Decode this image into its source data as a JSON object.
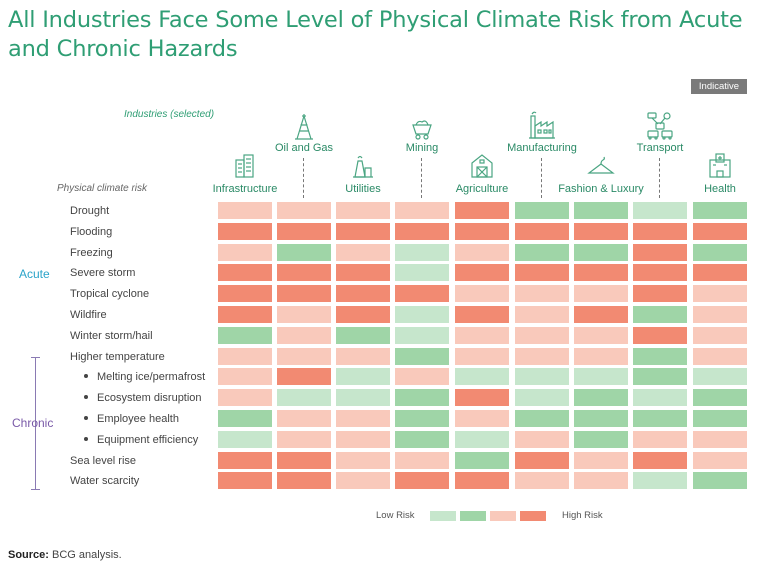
{
  "title": "All Industries Face Some Level of Physical Climate Risk from Acute and Chronic Hazards",
  "badge": "Indicative",
  "industries_caption": "Industries (selected)",
  "risk_caption": "Physical climate risk",
  "groups": {
    "acute": "Acute",
    "chronic": "Chronic"
  },
  "legend": {
    "low": "Low Risk",
    "high": "High Risk"
  },
  "source_label": "Source:",
  "source_text": "BCG analysis.",
  "colors": {
    "very_low": "#c6e6cc",
    "low": "#9fd5a7",
    "moderate": "#f9c9bb",
    "high": "#f28a72",
    "title": "#2f9e74"
  },
  "industry_icons": [
    "building-icon",
    "oil-rig-icon",
    "power-plant-icon",
    "mine-cart-icon",
    "barn-icon",
    "factory-icon",
    "hanger-icon",
    "drone-transport-icon",
    "hospital-icon"
  ],
  "chart_data": {
    "type": "heatmap",
    "title": "All Industries Face Some Level of Physical Climate Risk from Acute and Chronic Hazards",
    "scale": [
      "very_low",
      "low",
      "moderate",
      "high"
    ],
    "scale_values": [
      1,
      2,
      3,
      4
    ],
    "columns": [
      "Infrastructure",
      "Oil and Gas",
      "Utilities",
      "Mining",
      "Agriculture",
      "Manufacturing",
      "Fashion & Luxury",
      "Transport",
      "Health"
    ],
    "rows": [
      {
        "label": "Drought",
        "group": "Acute",
        "values": [
          3,
          3,
          3,
          3,
          4,
          2,
          2,
          1,
          2
        ]
      },
      {
        "label": "Flooding",
        "group": "Acute",
        "values": [
          4,
          4,
          4,
          4,
          4,
          4,
          4,
          4,
          4
        ]
      },
      {
        "label": "Freezing",
        "group": "Acute",
        "values": [
          3,
          2,
          3,
          1,
          3,
          2,
          2,
          4,
          2
        ]
      },
      {
        "label": "Severe storm",
        "group": "Acute",
        "values": [
          4,
          4,
          4,
          1,
          4,
          4,
          4,
          4,
          4
        ]
      },
      {
        "label": "Tropical cyclone",
        "group": "Acute",
        "values": [
          4,
          4,
          4,
          4,
          3,
          3,
          3,
          4,
          3
        ]
      },
      {
        "label": "Wildfire",
        "group": "Acute",
        "values": [
          4,
          3,
          4,
          1,
          4,
          3,
          4,
          2,
          3
        ]
      },
      {
        "label": "Winter storm/hail",
        "group": "Acute",
        "values": [
          2,
          3,
          2,
          1,
          3,
          3,
          3,
          4,
          3
        ]
      },
      {
        "label": "Higher temperature",
        "group": "Chronic",
        "values": [
          3,
          3,
          3,
          2,
          3,
          3,
          3,
          2,
          3
        ]
      },
      {
        "label": "Melting ice/permafrost",
        "group": "Chronic",
        "sub": true,
        "values": [
          3,
          4,
          1,
          3,
          1,
          1,
          1,
          2,
          1
        ]
      },
      {
        "label": "Ecosystem disruption",
        "group": "Chronic",
        "sub": true,
        "values": [
          3,
          1,
          1,
          2,
          4,
          1,
          2,
          1,
          2
        ]
      },
      {
        "label": "Employee health",
        "group": "Chronic",
        "sub": true,
        "values": [
          2,
          3,
          3,
          2,
          3,
          2,
          2,
          2,
          2
        ]
      },
      {
        "label": "Equipment efficiency",
        "group": "Chronic",
        "sub": true,
        "values": [
          1,
          3,
          3,
          2,
          1,
          3,
          2,
          3,
          3
        ]
      },
      {
        "label": "Sea level rise",
        "group": "Chronic",
        "values": [
          4,
          4,
          3,
          3,
          2,
          4,
          3,
          4,
          3
        ]
      },
      {
        "label": "Water scarcity",
        "group": "Chronic",
        "values": [
          4,
          4,
          3,
          4,
          4,
          3,
          3,
          1,
          2
        ]
      }
    ],
    "legend": [
      "Low Risk",
      "High Risk"
    ]
  }
}
